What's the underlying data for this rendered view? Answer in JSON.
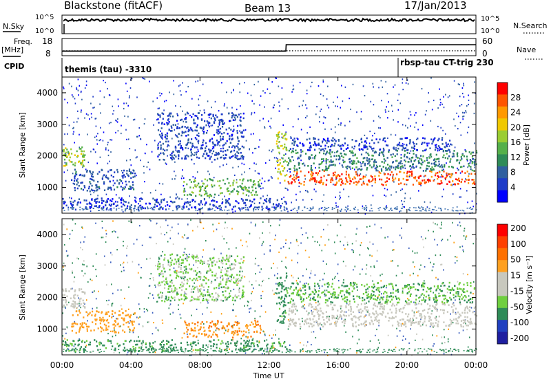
{
  "header": {
    "station": "Blackstone (fitACF)",
    "beam": "Beam 13",
    "date": "17/Jan/2013"
  },
  "panels": {
    "noise": {
      "left_label": "N.Sky",
      "right_label": "N.Search",
      "left_ticks": [
        "10^5",
        "10^0"
      ],
      "right_ticks": [
        "10^5",
        "10^0"
      ]
    },
    "freq": {
      "left_label": "Freq.",
      "left_unit": "[MHz]",
      "right_label": "Nave",
      "left_ticks": [
        "18",
        "8"
      ],
      "right_ticks": [
        "60",
        "0"
      ]
    },
    "cpid": {
      "label": "CPID",
      "programs": [
        "themis (tau) -3310",
        "rbsp-tau CT-trig 230"
      ]
    }
  },
  "colors": {
    "power_scale": [
      "#0000ff",
      "#1e3cc8",
      "#2f5f9f",
      "#2e8b57",
      "#55b04a",
      "#9acd32",
      "#f0c800",
      "#ff9900",
      "#ff5500",
      "#ff0000"
    ],
    "velocity_scale": [
      "#1e1ea0",
      "#2040c0",
      "#2e8b57",
      "#6fcf3f",
      "#c8c8be",
      "#c8c8be",
      "#ffa020",
      "#ff7000",
      "#ff4000",
      "#ff0000"
    ]
  },
  "chart_data": [
    {
      "type": "line",
      "title": "N.Sky / N.Search",
      "x": [
        "00:00",
        "24:00"
      ],
      "ylim_log10": [
        0,
        5
      ],
      "note_values": {
        "sky_level_log10": 3.7,
        "search_level_log10": 3.8
      }
    },
    {
      "type": "line",
      "title": "Freq. / Nave",
      "series": [
        {
          "name": "Freq. [MHz]",
          "x": [
            0,
            12.98,
            13.0,
            24
          ],
          "values": [
            10.7,
            10.7,
            14.4,
            14.4
          ]
        },
        {
          "name": "Nave",
          "x": [
            0,
            24
          ],
          "values": [
            17,
            17
          ]
        }
      ]
    },
    {
      "type": "heatmap",
      "name": "power",
      "xlabel": "Time UT",
      "ylabel": "Slant Range [km]",
      "x_ticks": [
        "00:00",
        "04:00",
        "08:00",
        "12:00",
        "16:00",
        "20:00",
        "00:00"
      ],
      "xlim_hours": [
        0,
        24
      ],
      "y_ticks": [
        1000,
        2000,
        3000,
        4000
      ],
      "ylim": [
        180,
        4500
      ],
      "colorbar": {
        "label": "Power [dB]",
        "ticks": [
          "4",
          "8",
          "12",
          "16",
          "20",
          "24",
          "28"
        ],
        "range": [
          0,
          30
        ]
      },
      "regions": [
        {
          "t0": 0.0,
          "t1": 1.3,
          "r0": 1700,
          "r1": 2300,
          "level": 0.55
        },
        {
          "t0": 0.5,
          "t1": 4.2,
          "r0": 900,
          "r1": 1600,
          "level": 0.18
        },
        {
          "t0": 0.0,
          "t1": 13.0,
          "r0": 320,
          "r1": 680,
          "level": 0.12
        },
        {
          "t0": 5.5,
          "t1": 10.5,
          "r0": 1900,
          "r1": 3400,
          "level": 0.15
        },
        {
          "t0": 7.0,
          "t1": 11.5,
          "r0": 750,
          "r1": 1300,
          "level": 0.45
        },
        {
          "t0": 12.4,
          "t1": 13.0,
          "r0": 1200,
          "r1": 2800,
          "level": 0.6
        },
        {
          "t0": 13.0,
          "t1": 24.0,
          "r0": 1100,
          "r1": 1550,
          "level": 0.9
        },
        {
          "t0": 13.0,
          "t1": 24.0,
          "r0": 1550,
          "r1": 2200,
          "level": 0.3
        },
        {
          "t0": 13.2,
          "t1": 22.5,
          "r0": 2200,
          "r1": 2600,
          "level": 0.12
        }
      ]
    },
    {
      "type": "heatmap",
      "name": "velocity",
      "xlabel": "Time UT",
      "ylabel": "Slant Range [km]",
      "x_ticks": [
        "00:00",
        "04:00",
        "08:00",
        "12:00",
        "16:00",
        "20:00",
        "00:00"
      ],
      "xlim_hours": [
        0,
        24
      ],
      "y_ticks": [
        1000,
        2000,
        3000,
        4000
      ],
      "ylim": [
        180,
        4500
      ],
      "colorbar": {
        "label": "Velocity [m s⁻¹]",
        "ticks": [
          "200",
          "100",
          "50",
          "15",
          "-15",
          "-50",
          "-100",
          "-200"
        ],
        "range": [
          -250,
          250
        ]
      },
      "regions": [
        {
          "t0": 0.0,
          "t1": 1.3,
          "r0": 1700,
          "r1": 2300,
          "level": -15
        },
        {
          "t0": 0.5,
          "t1": 4.2,
          "r0": 900,
          "r1": 1600,
          "level": -60
        },
        {
          "t0": 0.0,
          "t1": 13.0,
          "r0": 320,
          "r1": 680,
          "level": 40
        },
        {
          "t0": 5.5,
          "t1": 10.5,
          "r0": 1900,
          "r1": 3400,
          "level": 20
        },
        {
          "t0": 7.0,
          "t1": 11.5,
          "r0": 750,
          "r1": 1300,
          "level": -70
        },
        {
          "t0": 12.4,
          "t1": 13.0,
          "r0": 1200,
          "r1": 2800,
          "level": 45
        },
        {
          "t0": 13.0,
          "t1": 24.0,
          "r0": 1100,
          "r1": 1850,
          "level": 0
        },
        {
          "t0": 13.0,
          "t1": 24.0,
          "r0": 1850,
          "r1": 2500,
          "level": 30
        }
      ]
    }
  ]
}
